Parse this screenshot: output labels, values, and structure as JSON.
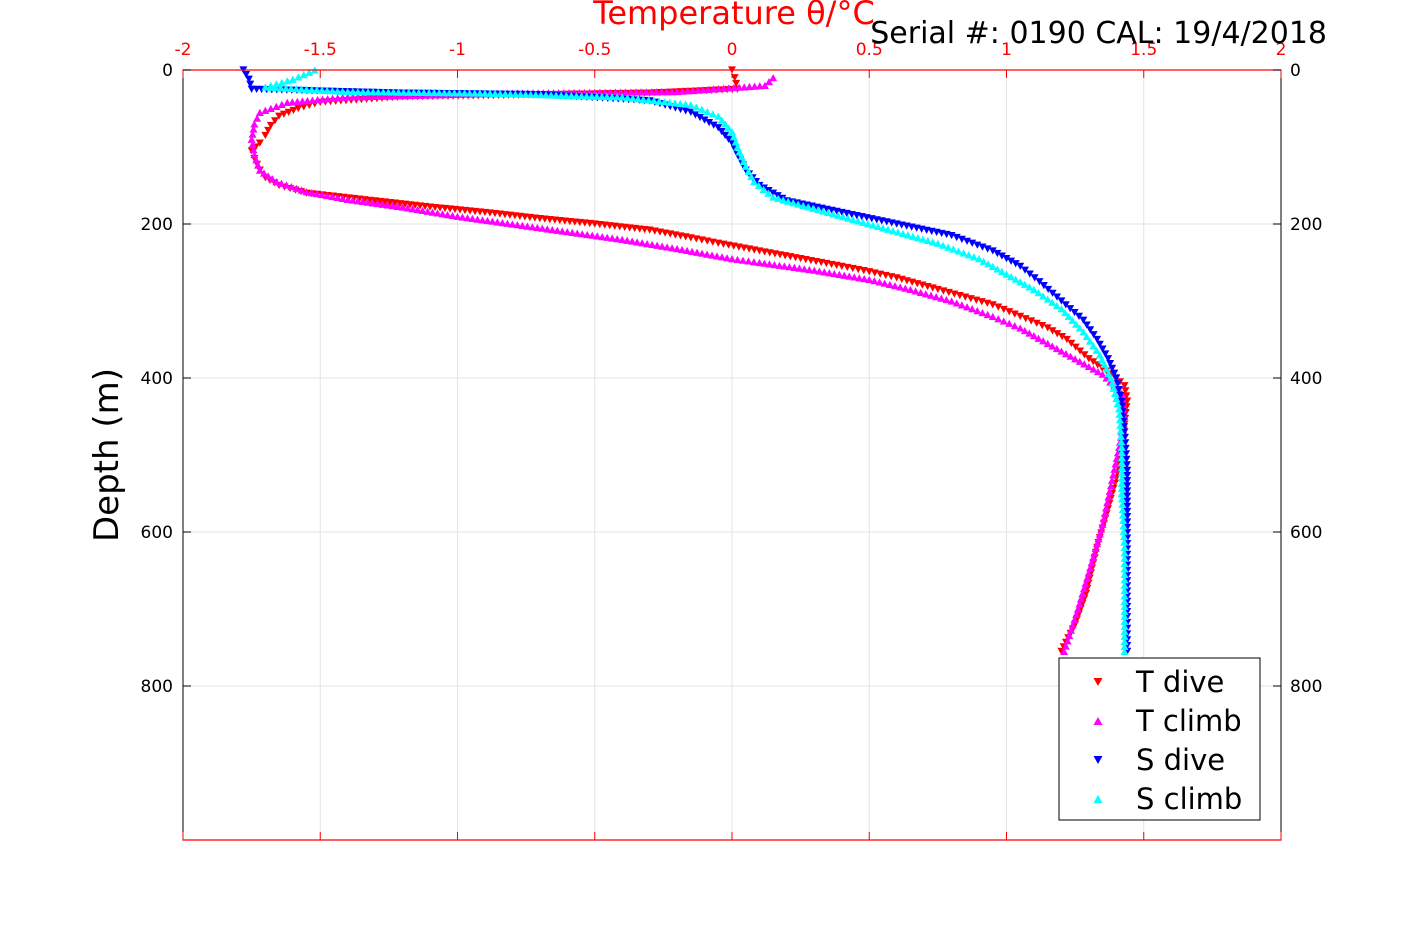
{
  "chart_data": {
    "type": "scatter",
    "title": "",
    "xlabel": "Temperature θ/°C",
    "ylabel": "Depth (m)",
    "annotation": "Serial #: 0190  CAL: 19/4/2018",
    "xlim": [
      -2,
      2
    ],
    "ylim": [
      0,
      1000
    ],
    "y_reversed": true,
    "x_ticks": [
      -2,
      -1.5,
      -1,
      -0.5,
      0,
      0.5,
      1,
      1.5,
      2
    ],
    "x_tick_labels": [
      "-2",
      "-1.5",
      "-1",
      "-0.5",
      "0",
      "0.5",
      "1",
      "1.5",
      "2"
    ],
    "y_ticks": [
      0,
      200,
      400,
      600,
      800
    ],
    "y_tick_labels": [
      "0",
      "200",
      "400",
      "600",
      "800"
    ],
    "grid": true,
    "legend_position": "bottom-right",
    "axis_color": "#ff0000",
    "series": [
      {
        "name": "T dive",
        "marker": "triangle-down",
        "color": "#ff0000",
        "points": [
          [
            0.0,
            0
          ],
          [
            0.01,
            10
          ],
          [
            0.02,
            25
          ],
          [
            -0.3,
            30
          ],
          [
            -1.2,
            35
          ],
          [
            -1.5,
            42
          ],
          [
            -1.58,
            50
          ],
          [
            -1.65,
            60
          ],
          [
            -1.68,
            72
          ],
          [
            -1.7,
            85
          ],
          [
            -1.72,
            95
          ],
          [
            -1.75,
            105
          ],
          [
            -1.74,
            115
          ],
          [
            -1.72,
            130
          ],
          [
            -1.7,
            140
          ],
          [
            -1.65,
            150
          ],
          [
            -1.55,
            160
          ],
          [
            -1.3,
            170
          ],
          [
            -1.1,
            178
          ],
          [
            -0.9,
            185
          ],
          [
            -0.7,
            193
          ],
          [
            -0.5,
            200
          ],
          [
            -0.3,
            208
          ],
          [
            -0.15,
            218
          ],
          [
            -0.05,
            225
          ],
          [
            0.1,
            235
          ],
          [
            0.25,
            245
          ],
          [
            0.4,
            255
          ],
          [
            0.5,
            262
          ],
          [
            0.6,
            270
          ],
          [
            0.75,
            285
          ],
          [
            0.85,
            295
          ],
          [
            0.95,
            305
          ],
          [
            1.05,
            320
          ],
          [
            1.15,
            335
          ],
          [
            1.22,
            350
          ],
          [
            1.3,
            375
          ],
          [
            1.38,
            395
          ],
          [
            1.43,
            410
          ],
          [
            1.44,
            430
          ],
          [
            1.43,
            460
          ],
          [
            1.42,
            490
          ],
          [
            1.4,
            530
          ],
          [
            1.37,
            570
          ],
          [
            1.33,
            620
          ],
          [
            1.29,
            680
          ],
          [
            1.25,
            720
          ],
          [
            1.2,
            755
          ]
        ]
      },
      {
        "name": "T climb",
        "marker": "triangle-up",
        "color": "#ff00ff",
        "points": [
          [
            0.15,
            10
          ],
          [
            0.12,
            20
          ],
          [
            -0.2,
            28
          ],
          [
            -0.8,
            30
          ],
          [
            -1.4,
            35
          ],
          [
            -1.62,
            42
          ],
          [
            -1.72,
            55
          ],
          [
            -1.74,
            70
          ],
          [
            -1.75,
            90
          ],
          [
            -1.74,
            110
          ],
          [
            -1.72,
            130
          ],
          [
            -1.66,
            145
          ],
          [
            -1.55,
            158
          ],
          [
            -1.4,
            168
          ],
          [
            -1.2,
            178
          ],
          [
            -1.0,
            190
          ],
          [
            -0.8,
            200
          ],
          [
            -0.6,
            210
          ],
          [
            -0.4,
            220
          ],
          [
            -0.2,
            232
          ],
          [
            0.0,
            245
          ],
          [
            0.1,
            250
          ],
          [
            0.3,
            260
          ],
          [
            0.5,
            272
          ],
          [
            0.65,
            285
          ],
          [
            0.8,
            300
          ],
          [
            0.95,
            320
          ],
          [
            1.05,
            335
          ],
          [
            1.15,
            355
          ],
          [
            1.25,
            375
          ],
          [
            1.35,
            395
          ],
          [
            1.42,
            420
          ],
          [
            1.43,
            450
          ],
          [
            1.41,
            490
          ],
          [
            1.38,
            540
          ],
          [
            1.35,
            590
          ],
          [
            1.31,
            640
          ],
          [
            1.26,
            700
          ],
          [
            1.21,
            755
          ]
        ]
      },
      {
        "name": "S dive",
        "marker": "triangle-down",
        "color": "#0000ff",
        "points": [
          [
            -1.78,
            0
          ],
          [
            -1.76,
            12
          ],
          [
            -1.75,
            25
          ],
          [
            -1.2,
            30
          ],
          [
            -0.7,
            32
          ],
          [
            -0.3,
            40
          ],
          [
            -0.15,
            55
          ],
          [
            -0.05,
            75
          ],
          [
            0.0,
            95
          ],
          [
            0.02,
            110
          ],
          [
            0.05,
            130
          ],
          [
            0.1,
            150
          ],
          [
            0.2,
            170
          ],
          [
            0.4,
            185
          ],
          [
            0.6,
            200
          ],
          [
            0.8,
            215
          ],
          [
            0.95,
            235
          ],
          [
            1.05,
            255
          ],
          [
            1.12,
            275
          ],
          [
            1.2,
            300
          ],
          [
            1.28,
            325
          ],
          [
            1.33,
            350
          ],
          [
            1.37,
            375
          ],
          [
            1.4,
            400
          ],
          [
            1.42,
            430
          ],
          [
            1.43,
            470
          ],
          [
            1.44,
            520
          ],
          [
            1.44,
            580
          ],
          [
            1.44,
            650
          ],
          [
            1.44,
            710
          ],
          [
            1.44,
            755
          ]
        ]
      },
      {
        "name": "S climb",
        "marker": "triangle-up",
        "color": "#00ffff",
        "points": [
          [
            -1.52,
            0
          ],
          [
            -1.6,
            12
          ],
          [
            -1.7,
            22
          ],
          [
            -1.4,
            28
          ],
          [
            -0.9,
            30
          ],
          [
            -0.4,
            35
          ],
          [
            -0.15,
            45
          ],
          [
            -0.05,
            60
          ],
          [
            0.0,
            80
          ],
          [
            0.02,
            100
          ],
          [
            0.05,
            125
          ],
          [
            0.08,
            145
          ],
          [
            0.15,
            165
          ],
          [
            0.35,
            185
          ],
          [
            0.55,
            205
          ],
          [
            0.75,
            225
          ],
          [
            0.9,
            245
          ],
          [
            1.0,
            265
          ],
          [
            1.1,
            285
          ],
          [
            1.2,
            310
          ],
          [
            1.28,
            340
          ],
          [
            1.34,
            370
          ],
          [
            1.38,
            400
          ],
          [
            1.41,
            440
          ],
          [
            1.42,
            490
          ],
          [
            1.42,
            550
          ],
          [
            1.43,
            620
          ],
          [
            1.43,
            690
          ],
          [
            1.43,
            755
          ]
        ]
      }
    ]
  }
}
